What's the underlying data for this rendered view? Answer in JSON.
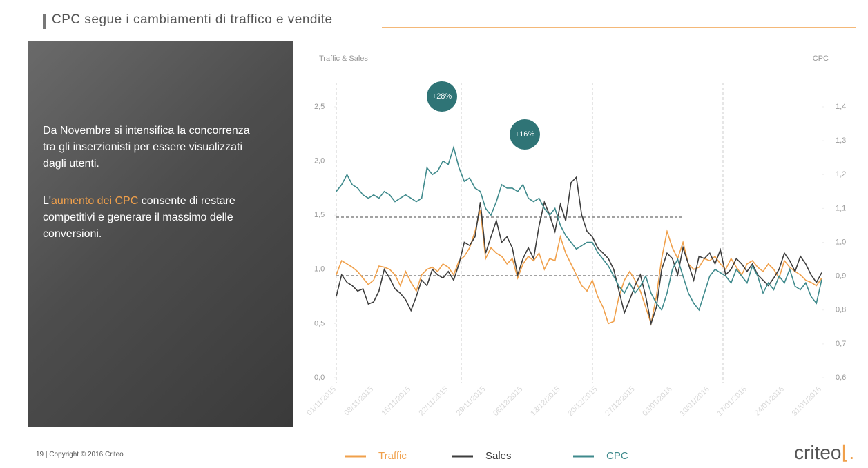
{
  "slide": {
    "title": "CPC segue i cambiamenti di traffico e vendite",
    "paragraph1": "Da Novembre si intensifica la concorrenza tra gli inserzionisti per essere visualizzati dagli utenti.",
    "paragraph2": [
      "L'",
      "aumento dei CPC",
      " consente di restare competitivi  e generare il massimo delle conversioni."
    ],
    "footer": "19  |  Copyright © 2016 Criteo",
    "logo": "criteo"
  },
  "chart_data": {
    "type": "line",
    "y_label": "Traffic & Sales",
    "y2_label": "CPC",
    "annotations": [
      "+28%",
      "+16%"
    ],
    "categories": [
      "01/11/2015",
      null,
      null,
      null,
      null,
      null,
      null,
      "08/11/2015",
      null,
      null,
      null,
      null,
      null,
      null,
      "15/11/2015",
      null,
      null,
      null,
      null,
      null,
      null,
      "22/11/2015",
      null,
      null,
      null,
      null,
      null,
      null,
      "29/11/2015",
      null,
      null,
      null,
      null,
      null,
      null,
      "06/12/2015",
      null,
      null,
      null,
      null,
      null,
      null,
      "13/12/2015",
      null,
      null,
      null,
      null,
      null,
      null,
      "20/12/2015",
      null,
      null,
      null,
      null,
      null,
      null,
      "27/12/2015",
      null,
      null,
      null,
      null,
      null,
      null,
      "03/01/2016",
      null,
      null,
      null,
      null,
      null,
      null,
      "10/01/2016",
      null,
      null,
      null,
      null,
      null,
      null,
      "17/01/2016",
      null,
      null,
      null,
      null,
      null,
      null,
      "24/01/2016",
      null,
      null,
      null,
      null,
      null,
      null,
      "31/01/2016"
    ],
    "ylim": [
      0,
      2.5
    ],
    "yticks": [
      {
        "value": 0,
        "label": "0,0"
      },
      {
        "value": 0.5,
        "label": "0,5"
      },
      {
        "value": 1,
        "label": "1,0"
      },
      {
        "value": 1.5,
        "label": "1,5"
      },
      {
        "value": 2,
        "label": "2,0"
      },
      {
        "value": 2.5,
        "label": "2,5"
      }
    ],
    "y2lim": [
      0.6,
      1.4
    ],
    "y2ticks": [
      {
        "value": 0.6,
        "label": "0,6"
      },
      {
        "value": 0.7,
        "label": "0,7"
      },
      {
        "value": 0.8,
        "label": "0,8"
      },
      {
        "value": 0.9,
        "label": "0,9"
      },
      {
        "value": 1,
        "label": "1,0"
      },
      {
        "value": 1.1,
        "label": "1,1"
      },
      {
        "value": 1.2,
        "label": "1,2"
      },
      {
        "value": 1.3,
        "label": "1,3"
      },
      {
        "value": 1.4,
        "label": "1,4"
      }
    ],
    "series": [
      {
        "name": "Traffic",
        "color": "#f0a04b",
        "values": [
          0.95,
          1.08,
          1.05,
          1.02,
          0.98,
          0.92,
          0.86,
          0.9,
          1.03,
          1.02,
          1.0,
          0.95,
          0.85,
          0.98,
          0.88,
          0.8,
          0.95,
          1.0,
          1.02,
          0.98,
          1.05,
          1.02,
          0.95,
          1.08,
          1.12,
          1.2,
          1.35,
          1.55,
          1.1,
          1.2,
          1.15,
          1.12,
          1.05,
          1.1,
          0.92,
          1.05,
          1.12,
          1.08,
          1.15,
          1.0,
          1.1,
          1.08,
          1.3,
          1.15,
          1.05,
          0.95,
          0.85,
          0.8,
          0.9,
          0.75,
          0.65,
          0.5,
          0.52,
          0.75,
          0.9,
          0.98,
          0.9,
          0.8,
          0.65,
          0.5,
          0.75,
          1.1,
          1.35,
          1.2,
          1.1,
          1.25,
          1.05,
          1.0,
          1.02,
          1.1,
          1.08,
          1.12,
          1.05,
          1.0,
          1.1,
          1.02,
          0.95,
          1.05,
          1.08,
          1.02,
          0.98,
          1.05,
          1.0,
          0.92,
          1.08,
          1.02,
          0.98,
          0.95,
          0.9,
          0.88,
          0.85,
          0.92
        ]
      },
      {
        "name": "Sales",
        "color": "#3d3d3d",
        "values": [
          0.75,
          0.95,
          0.88,
          0.85,
          0.8,
          0.82,
          0.68,
          0.7,
          0.8,
          1.0,
          0.92,
          0.82,
          0.78,
          0.72,
          0.62,
          0.75,
          0.9,
          0.85,
          1.0,
          0.95,
          0.92,
          0.98,
          0.9,
          1.05,
          1.25,
          1.22,
          1.3,
          1.62,
          1.15,
          1.3,
          1.45,
          1.25,
          1.3,
          1.2,
          0.95,
          1.1,
          1.2,
          1.1,
          1.4,
          1.62,
          1.5,
          1.35,
          1.6,
          1.45,
          1.8,
          1.85,
          1.5,
          1.35,
          1.3,
          1.2,
          1.15,
          1.1,
          1.0,
          0.8,
          0.6,
          0.72,
          0.85,
          0.95,
          0.75,
          0.5,
          0.65,
          1.0,
          1.15,
          1.1,
          0.95,
          1.2,
          1.05,
          0.9,
          1.12,
          1.1,
          1.15,
          1.05,
          1.18,
          0.95,
          1.0,
          1.1,
          1.05,
          0.98,
          1.05,
          0.95,
          0.9,
          0.85,
          0.92,
          1.0,
          1.15,
          1.08,
          0.98,
          1.12,
          1.05,
          0.95,
          0.88,
          0.97
        ]
      },
      {
        "name": "CPC",
        "color": "#3f8a8c",
        "axis": "y2",
        "values": [
          1.15,
          1.17,
          1.2,
          1.17,
          1.16,
          1.14,
          1.13,
          1.14,
          1.13,
          1.15,
          1.14,
          1.12,
          1.13,
          1.14,
          1.13,
          1.12,
          1.13,
          1.22,
          1.2,
          1.21,
          1.24,
          1.23,
          1.28,
          1.22,
          1.18,
          1.19,
          1.16,
          1.15,
          1.1,
          1.08,
          1.12,
          1.17,
          1.16,
          1.16,
          1.15,
          1.17,
          1.13,
          1.12,
          1.13,
          1.1,
          1.08,
          1.1,
          1.05,
          1.02,
          1.0,
          0.98,
          0.99,
          1.0,
          1.0,
          0.97,
          0.95,
          0.93,
          0.9,
          0.87,
          0.85,
          0.88,
          0.85,
          0.87,
          0.9,
          0.85,
          0.82,
          0.8,
          0.85,
          0.92,
          0.95,
          0.9,
          0.85,
          0.82,
          0.8,
          0.85,
          0.9,
          0.92,
          0.91,
          0.9,
          0.88,
          0.92,
          0.9,
          0.88,
          0.93,
          0.9,
          0.85,
          0.88,
          0.86,
          0.9,
          0.88,
          0.92,
          0.87,
          0.86,
          0.88,
          0.84,
          0.82,
          0.89
        ]
      }
    ]
  }
}
